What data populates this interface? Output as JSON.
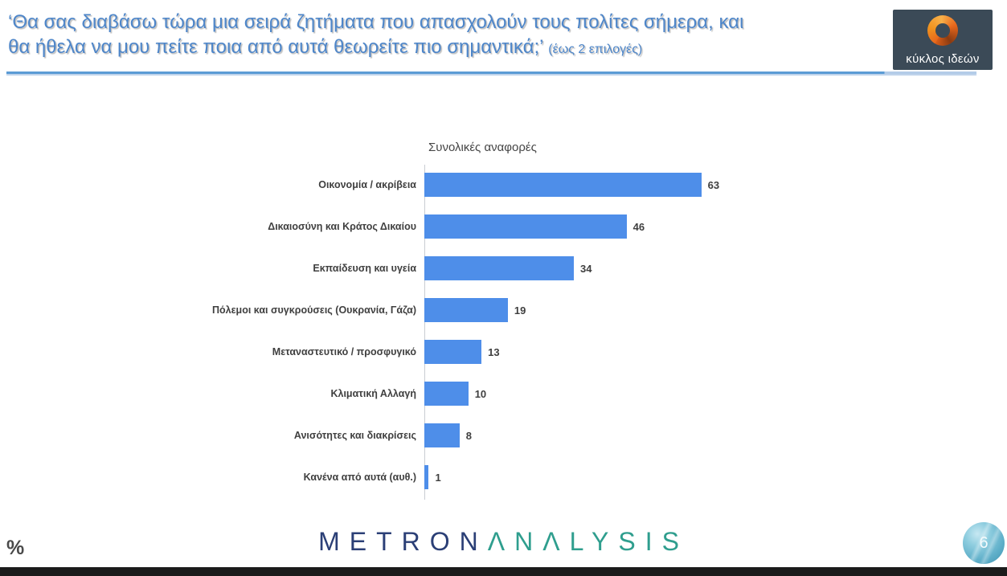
{
  "header": {
    "title_line1": "‘Θα σας διαβάσω τώρα μια σειρά ζητήματα που απασχολούν τους πολίτες σήμερα, και",
    "title_line2": "θα ήθελα να μου πείτε ποια από αυτά θεωρείτε πιο σημαντικά;’",
    "subtitle": "(έως 2 επιλογές)",
    "logo_text": "κύκλος ιδεών",
    "logo_bg_color": "#3b4a57",
    "logo_swirl_color": "#e8671c",
    "title_color": "#4e86c9",
    "rule_color": "#5b9bd5"
  },
  "chart_data": {
    "type": "bar",
    "orientation": "horizontal",
    "title": "Συνολικές αναφορές",
    "categories": [
      "Οικονομία / ακρίβεια",
      "Δικαιοσύνη και Κράτος Δικαίου",
      "Εκπαίδευση και υγεία",
      "Πόλεμοι και συγκρούσεις (Ουκρανία, Γάζα)",
      "Μεταναστευτικό / προσφυγικό",
      "Κλιματική Αλλαγή",
      "Ανισότητες και διακρίσεις",
      "Κανένα από αυτά (αυθ.)"
    ],
    "values": [
      63,
      46,
      34,
      19,
      13,
      10,
      8,
      1
    ],
    "unit": "%",
    "bar_color": "#4e8ee9",
    "value_labels_shown": true,
    "xlim": [
      0,
      70
    ],
    "grid": false,
    "legend": false
  },
  "footer": {
    "percent_label": "%",
    "logo_parts": [
      {
        "text": "METRON",
        "color": "#2b3f76"
      },
      {
        "text": "ΛNΛLYSIS",
        "color": "#2f9e8e"
      }
    ],
    "page_number": "6"
  }
}
